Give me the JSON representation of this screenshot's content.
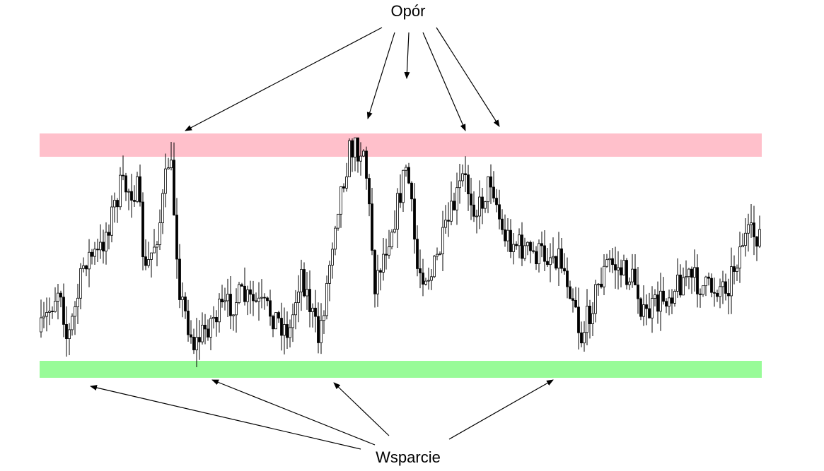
{
  "labels": {
    "resistance": "Opór",
    "support": "Wsparcie"
  }
}
